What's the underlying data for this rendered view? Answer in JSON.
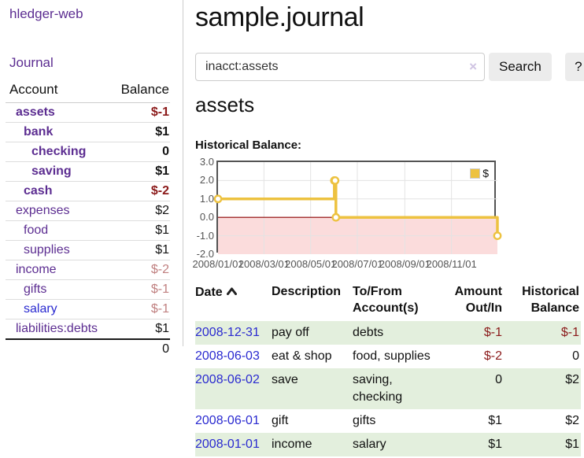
{
  "app": {
    "brand": "hledger-web"
  },
  "sidebar": {
    "journal_link": "Journal",
    "header": {
      "account": "Account",
      "balance": "Balance"
    },
    "accounts": [
      {
        "name": "assets",
        "balance": "$-1"
      },
      {
        "name": "bank",
        "balance": "$1"
      },
      {
        "name": "checking",
        "balance": "0"
      },
      {
        "name": "saving",
        "balance": "$1"
      },
      {
        "name": "cash",
        "balance": "$-2"
      },
      {
        "name": "expenses",
        "balance": "$2"
      },
      {
        "name": "food",
        "balance": "$1"
      },
      {
        "name": "supplies",
        "balance": "$1"
      },
      {
        "name": "income",
        "balance": "$-2"
      },
      {
        "name": "gifts",
        "balance": "$-1"
      },
      {
        "name": "salary",
        "balance": "$-1"
      },
      {
        "name": "liabilities:debts",
        "balance": "$1"
      }
    ],
    "total": "0"
  },
  "header": {
    "title": "sample.journal"
  },
  "search": {
    "value": "inacct:assets",
    "clear_icon": "×",
    "button": "Search",
    "help_button": "?"
  },
  "account_page": {
    "title": "assets",
    "chart_label": "Historical Balance:"
  },
  "chart_data": {
    "type": "line",
    "title": "Historical Balance:",
    "series": [
      {
        "name": "$",
        "style": "step",
        "points": [
          [
            "2008-01-01",
            1
          ],
          [
            "2008-06-01",
            2
          ],
          [
            "2008-06-02",
            2
          ],
          [
            "2008-06-03",
            0
          ],
          [
            "2008-12-31",
            -1
          ]
        ]
      }
    ],
    "x_range": [
      "2008-01-01",
      "2008-12-31"
    ],
    "x_ticks": [
      "2008/01/01",
      "2008/03/01",
      "2008/05/01",
      "2008/07/01",
      "2008/09/01",
      "2008/11/01"
    ],
    "y_ticks": [
      "3.0",
      "2.0",
      "1.0",
      "0.0",
      "-1.0",
      "-2.0"
    ],
    "ylim": [
      -2,
      3
    ],
    "grid": true,
    "legend_position": "top-right",
    "negative_region_shaded": true
  },
  "register": {
    "columns": {
      "date": "Date",
      "description": "Description",
      "accounts": "To/From\nAccount(s)",
      "amount": "Amount\nOut/In",
      "balance": "Historical\nBalance"
    },
    "sort": "date-ascending",
    "rows": [
      {
        "date": "2008-12-31",
        "description": "pay off",
        "accounts": "debts",
        "amount": "$-1",
        "balance": "$-1"
      },
      {
        "date": "2008-06-03",
        "description": "eat & shop",
        "accounts": "food, supplies",
        "amount": "$-2",
        "balance": "0"
      },
      {
        "date": "2008-06-02",
        "description": "save",
        "accounts": "saving, checking",
        "amount": "0",
        "balance": "$2"
      },
      {
        "date": "2008-06-01",
        "description": "gift",
        "accounts": "gifts",
        "amount": "$1",
        "balance": "$2"
      },
      {
        "date": "2008-01-01",
        "description": "income",
        "accounts": "salary",
        "amount": "$1",
        "balance": "$1"
      }
    ]
  },
  "colors": {
    "purple": "#5c2d91",
    "blue": "#2a2ad0",
    "darkred": "#8b1a1a",
    "rosy": "#c08080",
    "green_row": "#e3efdd",
    "gold": "#edc240",
    "pink_fill": "#fbdcdc",
    "zero_line": "#8b0000",
    "chart_border": "#545454",
    "grid_line": "#e3e3e3",
    "lavender": "#cfc3e2"
  }
}
